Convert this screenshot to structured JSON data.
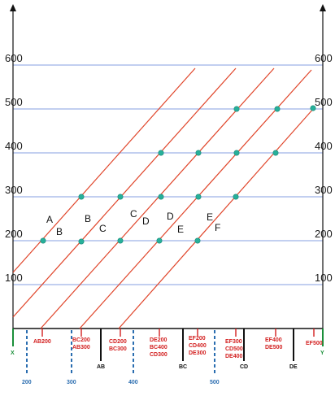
{
  "axis_values": [
    "100",
    "200",
    "300",
    "400",
    "500",
    "600"
  ],
  "line_labels": [
    {
      "id": "A",
      "text": "A"
    },
    {
      "id": "B1",
      "text": "B"
    },
    {
      "id": "B2",
      "text": "B"
    },
    {
      "id": "C1",
      "text": "C"
    },
    {
      "id": "C2",
      "text": "C"
    },
    {
      "id": "D1",
      "text": "D"
    },
    {
      "id": "D2",
      "text": "D"
    },
    {
      "id": "E1",
      "text": "E"
    },
    {
      "id": "E2",
      "text": "E"
    },
    {
      "id": "F",
      "text": "F"
    }
  ],
  "bottom": {
    "x": "X",
    "y": "Y",
    "red_groups": [
      [
        "AB200"
      ],
      [
        "BC200",
        "AB300"
      ],
      [
        "CD200",
        "BC300"
      ],
      [
        "DE200",
        "BC400",
        "CD300"
      ],
      [
        "EF200",
        "CD400",
        "DE300"
      ],
      [
        "EF300",
        "CD500",
        "DE400"
      ],
      [
        "EF400",
        "DE500"
      ],
      [
        "EF500"
      ]
    ],
    "black_labels": [
      "AB",
      "BC",
      "CD",
      "DE"
    ],
    "blue_labels": [
      "200",
      "300",
      "400",
      "500"
    ]
  },
  "colors": {
    "grid": "#5b7fd6",
    "lines": "#e0452a",
    "points": "#27b09a",
    "red_text": "#d32020",
    "blue_marks": "#2a6db0",
    "black_marks": "#111111",
    "green_marks": "#1b8f3a"
  }
}
